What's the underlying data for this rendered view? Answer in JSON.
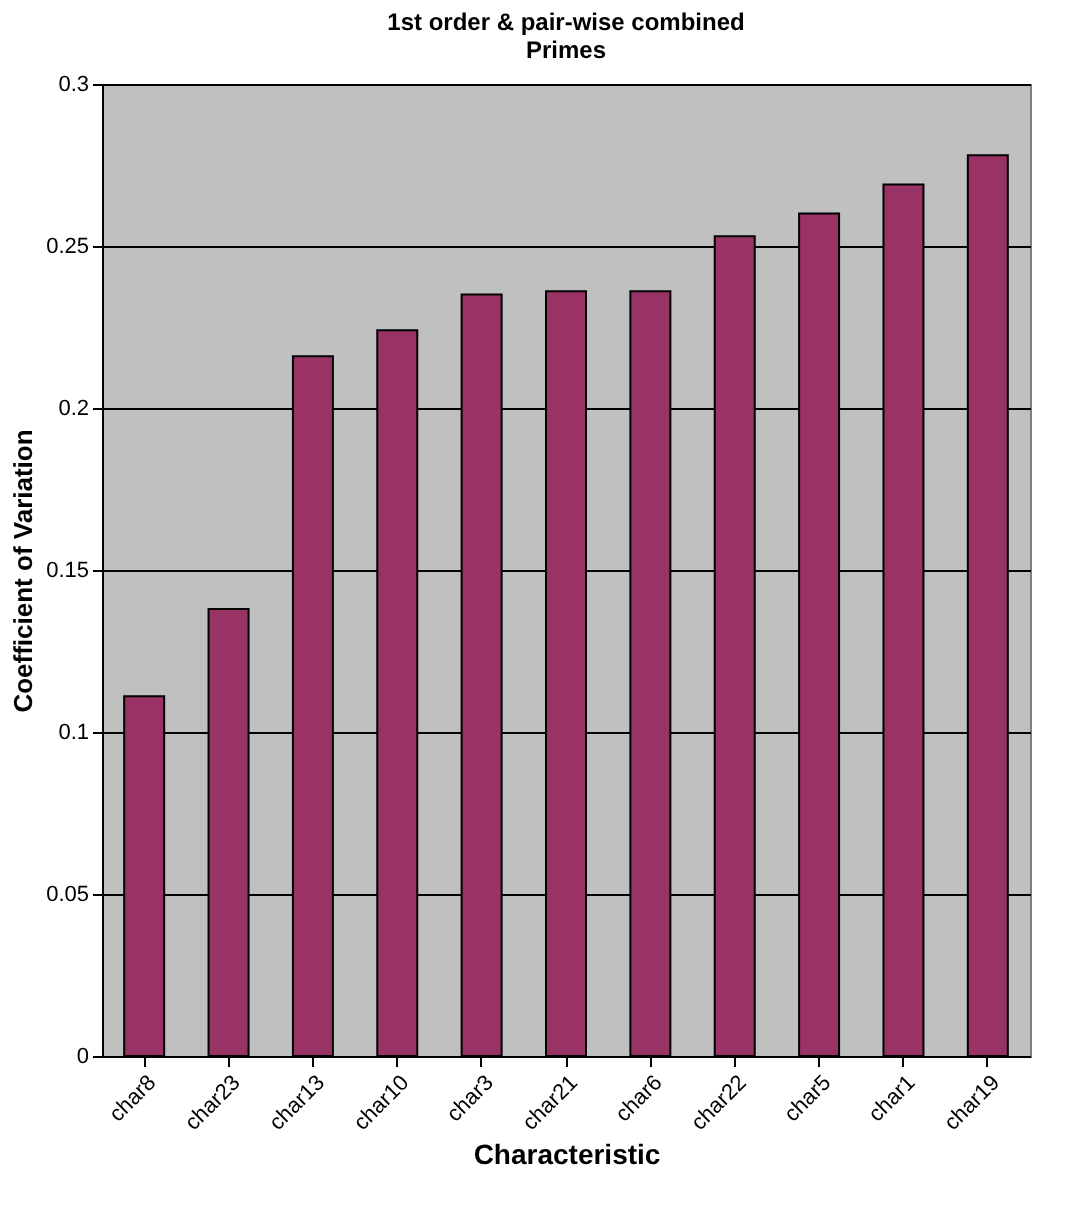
{
  "chart_data": {
    "type": "bar",
    "title": [
      "1st order & pair-wise combined",
      "Primes"
    ],
    "xlabel": "Characteristic",
    "ylabel": "Coefficient of Variation",
    "categories": [
      "char8",
      "char23",
      "char13",
      "char10",
      "char3",
      "char21",
      "char6",
      "char22",
      "char5",
      "char1",
      "char19"
    ],
    "values": [
      0.111,
      0.138,
      0.216,
      0.224,
      0.235,
      0.236,
      0.236,
      0.253,
      0.26,
      0.269,
      0.278
    ],
    "color": "#993366",
    "ylim": [
      0,
      0.3
    ],
    "yticks": [
      0,
      0.05,
      0.1,
      0.15,
      0.2,
      0.25,
      0.3
    ],
    "grid": "y"
  }
}
